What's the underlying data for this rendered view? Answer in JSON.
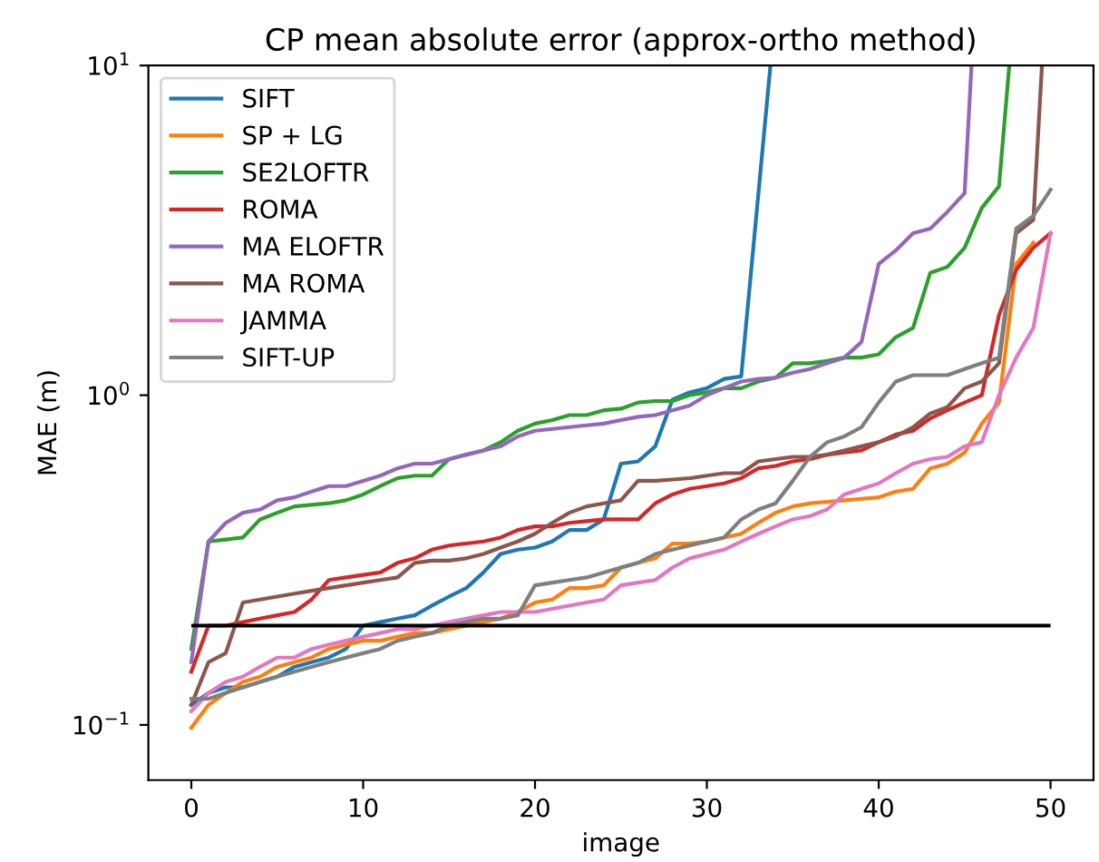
{
  "chart_data": {
    "type": "line",
    "title": "CP mean absolute error (approx-ortho method)",
    "xlabel": "image",
    "ylabel": "MAE (m)",
    "x": [
      0,
      1,
      2,
      3,
      4,
      5,
      6,
      7,
      8,
      9,
      10,
      11,
      12,
      13,
      14,
      15,
      16,
      17,
      18,
      19,
      20,
      21,
      22,
      23,
      24,
      25,
      26,
      27,
      28,
      29,
      30,
      31,
      32,
      33,
      34,
      35,
      36,
      37,
      38,
      39,
      40,
      41,
      42,
      43,
      44,
      45,
      46,
      47,
      48,
      49,
      50
    ],
    "log": "y",
    "xlim": [
      -2.5,
      52.5
    ],
    "xticks": [
      0,
      10,
      20,
      30,
      40,
      50
    ],
    "ylim": [
      0.068,
      10
    ],
    "yticks": [
      {
        "value": 0.1,
        "label": "10$^{−1}$"
      },
      {
        "value": 1,
        "label": "10$^{0}$"
      },
      {
        "value": 10,
        "label": "10$^{1}$"
      }
    ],
    "grid": false,
    "legend": "top left",
    "line_style": "solid",
    "marker": "none",
    "ref_lines": [
      {
        "axis": "y",
        "value": 0.2,
        "color": "#000000"
      }
    ],
    "series": [
      {
        "name": "SIFT",
        "color": "#1f77b4",
        "x": [
          0,
          1,
          2,
          3,
          4,
          5,
          6,
          7,
          8,
          9,
          10,
          11,
          12,
          13,
          14,
          15,
          16,
          17,
          18,
          19,
          20,
          21,
          22,
          23,
          24,
          25,
          26,
          27,
          28,
          29,
          30,
          31,
          32,
          33.7
        ],
        "values": [
          0.115,
          0.125,
          0.13,
          0.13,
          0.135,
          0.14,
          0.15,
          0.155,
          0.16,
          0.17,
          0.2,
          0.205,
          0.21,
          0.215,
          0.23,
          0.245,
          0.26,
          0.29,
          0.33,
          0.34,
          0.345,
          0.36,
          0.39,
          0.39,
          0.42,
          0.62,
          0.63,
          0.7,
          0.97,
          1.02,
          1.05,
          1.12,
          1.14,
          10
        ]
      },
      {
        "name": "SP + LG",
        "color": "#ff7f0e",
        "x": [
          0,
          1,
          2,
          3,
          4,
          5,
          6,
          7,
          8,
          9,
          10,
          11,
          12,
          13,
          14,
          15,
          16,
          17,
          18,
          19,
          20,
          21,
          22,
          23,
          24,
          25,
          26,
          27,
          28,
          29,
          30,
          31,
          32,
          33,
          34,
          35,
          36,
          37,
          38,
          39,
          40,
          41,
          42,
          43,
          44,
          45,
          46,
          47,
          48,
          49
        ],
        "values": [
          0.098,
          0.115,
          0.125,
          0.135,
          0.14,
          0.15,
          0.155,
          0.16,
          0.17,
          0.175,
          0.18,
          0.18,
          0.185,
          0.19,
          0.19,
          0.195,
          0.2,
          0.205,
          0.21,
          0.22,
          0.235,
          0.24,
          0.26,
          0.26,
          0.265,
          0.3,
          0.31,
          0.32,
          0.355,
          0.355,
          0.36,
          0.37,
          0.38,
          0.41,
          0.44,
          0.46,
          0.47,
          0.475,
          0.48,
          0.485,
          0.49,
          0.51,
          0.52,
          0.6,
          0.62,
          0.67,
          0.82,
          0.95,
          2.5,
          2.9
        ]
      },
      {
        "name": "SE2LOFTR",
        "color": "#2ca02c",
        "x": [
          0,
          1,
          2,
          3,
          4,
          5,
          6,
          7,
          8,
          9,
          10,
          11,
          12,
          13,
          14,
          15,
          16,
          17,
          18,
          19,
          20,
          21,
          22,
          23,
          24,
          25,
          26,
          27,
          28,
          29,
          30,
          31,
          32,
          33,
          34,
          35,
          36,
          37,
          38,
          39,
          40,
          41,
          42,
          43,
          44,
          45,
          46,
          47,
          47.6
        ],
        "values": [
          0.17,
          0.36,
          0.365,
          0.37,
          0.42,
          0.44,
          0.46,
          0.465,
          0.47,
          0.48,
          0.5,
          0.53,
          0.56,
          0.57,
          0.57,
          0.64,
          0.66,
          0.68,
          0.72,
          0.78,
          0.82,
          0.84,
          0.87,
          0.87,
          0.9,
          0.91,
          0.95,
          0.96,
          0.96,
          1.0,
          1.02,
          1.05,
          1.05,
          1.1,
          1.13,
          1.25,
          1.25,
          1.27,
          1.3,
          1.3,
          1.33,
          1.5,
          1.6,
          2.35,
          2.45,
          2.8,
          3.7,
          4.3,
          10
        ]
      },
      {
        "name": "ROMA",
        "color": "#d62728",
        "values": [
          0.145,
          0.2,
          0.2,
          0.205,
          0.21,
          0.215,
          0.22,
          0.24,
          0.275,
          0.28,
          0.285,
          0.29,
          0.31,
          0.32,
          0.34,
          0.35,
          0.355,
          0.36,
          0.37,
          0.39,
          0.4,
          0.4,
          0.41,
          0.415,
          0.42,
          0.42,
          0.42,
          0.47,
          0.5,
          0.52,
          0.53,
          0.54,
          0.56,
          0.6,
          0.61,
          0.63,
          0.64,
          0.66,
          0.67,
          0.68,
          0.72,
          0.76,
          0.78,
          0.85,
          0.9,
          0.95,
          1.0,
          1.75,
          2.4,
          2.8,
          3.1
        ]
      },
      {
        "name": "MA ELOFTR",
        "color": "#9467bd",
        "x": [
          0,
          1,
          2,
          3,
          4,
          5,
          6,
          7,
          8,
          9,
          10,
          11,
          12,
          13,
          14,
          15,
          16,
          17,
          18,
          19,
          20,
          21,
          22,
          23,
          24,
          25,
          26,
          27,
          28,
          29,
          30,
          31,
          32,
          33,
          34,
          35,
          36,
          37,
          38,
          39,
          40,
          41,
          42,
          43,
          44,
          45,
          45.4
        ],
        "values": [
          0.155,
          0.36,
          0.41,
          0.44,
          0.45,
          0.48,
          0.49,
          0.51,
          0.53,
          0.53,
          0.55,
          0.57,
          0.6,
          0.62,
          0.62,
          0.64,
          0.66,
          0.68,
          0.7,
          0.75,
          0.78,
          0.79,
          0.8,
          0.81,
          0.82,
          0.84,
          0.86,
          0.87,
          0.9,
          0.93,
          1.0,
          1.05,
          1.1,
          1.12,
          1.13,
          1.17,
          1.2,
          1.25,
          1.3,
          1.45,
          2.5,
          2.75,
          3.1,
          3.2,
          3.6,
          4.1,
          10
        ]
      },
      {
        "name": "MA ROMA",
        "color": "#8c564b",
        "x": [
          0,
          1,
          2,
          3,
          4,
          5,
          6,
          7,
          8,
          9,
          10,
          11,
          12,
          13,
          14,
          15,
          16,
          17,
          18,
          19,
          20,
          21,
          22,
          23,
          24,
          25,
          26,
          27,
          28,
          29,
          30,
          31,
          32,
          33,
          34,
          35,
          36,
          37,
          38,
          39,
          40,
          41,
          42,
          43,
          44,
          45,
          46,
          47,
          48,
          49,
          49.5
        ],
        "values": [
          0.115,
          0.155,
          0.165,
          0.235,
          0.24,
          0.245,
          0.25,
          0.255,
          0.26,
          0.265,
          0.27,
          0.275,
          0.28,
          0.31,
          0.315,
          0.315,
          0.32,
          0.33,
          0.345,
          0.36,
          0.38,
          0.41,
          0.44,
          0.46,
          0.47,
          0.48,
          0.55,
          0.55,
          0.555,
          0.56,
          0.57,
          0.58,
          0.58,
          0.63,
          0.64,
          0.65,
          0.65,
          0.66,
          0.68,
          0.7,
          0.72,
          0.75,
          0.8,
          0.88,
          0.92,
          1.05,
          1.1,
          1.25,
          3.1,
          3.4,
          10
        ]
      },
      {
        "name": "JAMMA",
        "color": "#e377c2",
        "values": [
          0.11,
          0.125,
          0.135,
          0.14,
          0.15,
          0.16,
          0.16,
          0.17,
          0.175,
          0.18,
          0.185,
          0.19,
          0.195,
          0.195,
          0.2,
          0.205,
          0.21,
          0.215,
          0.22,
          0.22,
          0.22,
          0.225,
          0.23,
          0.235,
          0.24,
          0.265,
          0.27,
          0.275,
          0.3,
          0.32,
          0.33,
          0.34,
          0.36,
          0.38,
          0.4,
          0.42,
          0.43,
          0.45,
          0.5,
          0.52,
          0.54,
          0.58,
          0.62,
          0.64,
          0.65,
          0.7,
          0.72,
          1.0,
          1.3,
          1.6,
          3.1
        ]
      },
      {
        "name": "SIFT-UP",
        "color": "#7f7f7f",
        "values": [
          0.12,
          0.12,
          0.125,
          0.13,
          0.135,
          0.14,
          0.145,
          0.15,
          0.155,
          0.16,
          0.165,
          0.17,
          0.18,
          0.185,
          0.19,
          0.2,
          0.205,
          0.21,
          0.21,
          0.215,
          0.265,
          0.27,
          0.275,
          0.28,
          0.29,
          0.3,
          0.31,
          0.33,
          0.34,
          0.35,
          0.36,
          0.37,
          0.42,
          0.45,
          0.47,
          0.55,
          0.65,
          0.72,
          0.75,
          0.8,
          0.95,
          1.1,
          1.15,
          1.15,
          1.15,
          1.2,
          1.25,
          1.3,
          3.2,
          3.5,
          4.2
        ]
      }
    ]
  }
}
